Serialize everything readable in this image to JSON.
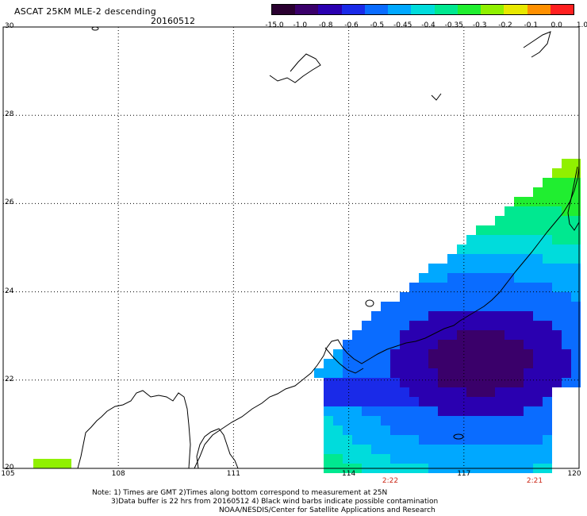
{
  "header": {
    "title": "ASCAT 25KM MLE-2 descending",
    "date": "20160512"
  },
  "colorbar": {
    "labels": [
      "-15.0",
      "-1.0",
      "-0.8",
      "-0.6",
      "-0.5",
      "-0.45",
      "-0.4",
      "-0.35",
      "-0.3",
      "-0.2",
      "-0.1",
      "0.0",
      "1.0"
    ],
    "colors": [
      "#2a0030",
      "#3a006a",
      "#2a00b0",
      "#1a2ae8",
      "#0a6cff",
      "#00a8ff",
      "#00dcdc",
      "#00e890",
      "#20ee30",
      "#90f000",
      "#e8e800",
      "#ff9000",
      "#ff2020"
    ]
  },
  "axes": {
    "lat_labels": [
      "30",
      "28",
      "26",
      "24",
      "22",
      "20"
    ],
    "lon_labels": [
      "105",
      "108",
      "111",
      "114",
      "117",
      "120"
    ]
  },
  "pass_times": [
    "2:22",
    "2:21"
  ],
  "notes": [
    "Note: 1) Times are GMT 2)Times along bottom correspond to measurement at 25N",
    "3)Data buffer is 22 hrs from 20160512 4) Black wind barbs indicate possible contamination",
    "NOAA/NESDIS/Center for Satellite Applications and Research"
  ]
}
